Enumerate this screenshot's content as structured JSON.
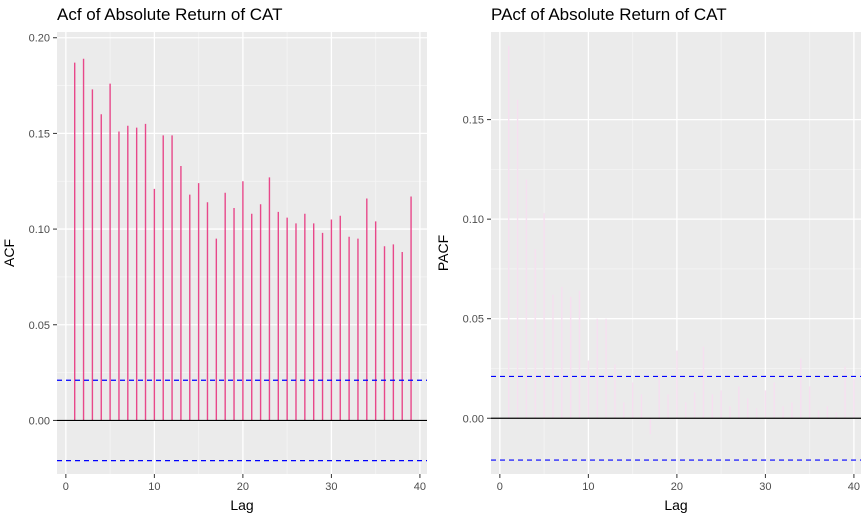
{
  "chart_data": [
    {
      "type": "bar",
      "title": "Acf of Absolute Return of CAT",
      "xlabel": "Lag",
      "ylabel": "ACF",
      "xlim": [
        -1,
        40.8
      ],
      "ylim": [
        -0.028,
        0.203
      ],
      "x_ticks": [
        0,
        10,
        20,
        30,
        40
      ],
      "y_ticks": [
        0.0,
        0.05,
        0.1,
        0.15,
        0.2
      ],
      "x_tick_labels": [
        "0",
        "10",
        "20",
        "30",
        "40"
      ],
      "y_tick_labels": [
        "0.00",
        "0.05",
        "0.10",
        "0.15",
        "0.20"
      ],
      "grid": true,
      "legend": "none",
      "bar_color": "#e8488a",
      "confidence_band": 0.021,
      "confidence_color": "#0000ff",
      "x": [
        1,
        2,
        3,
        4,
        5,
        6,
        7,
        8,
        9,
        10,
        11,
        12,
        13,
        14,
        15,
        16,
        17,
        18,
        19,
        20,
        21,
        22,
        23,
        24,
        25,
        26,
        27,
        28,
        29,
        30,
        31,
        32,
        33,
        34,
        35,
        36,
        37,
        38,
        39
      ],
      "values": [
        0.187,
        0.189,
        0.173,
        0.16,
        0.176,
        0.151,
        0.154,
        0.153,
        0.155,
        0.121,
        0.149,
        0.149,
        0.133,
        0.118,
        0.124,
        0.114,
        0.095,
        0.119,
        0.111,
        0.125,
        0.108,
        0.113,
        0.127,
        0.109,
        0.106,
        0.103,
        0.108,
        0.103,
        0.098,
        0.105,
        0.107,
        0.096,
        0.095,
        0.116,
        0.104,
        0.091,
        0.092,
        0.088,
        0.117
      ]
    },
    {
      "type": "bar",
      "title": "PAcf of Absolute Return of CAT",
      "xlabel": "Lag",
      "ylabel": "PACF",
      "xlim": [
        -1,
        40.8
      ],
      "ylim": [
        -0.028,
        0.194
      ],
      "x_ticks": [
        0,
        10,
        20,
        30,
        40
      ],
      "y_ticks": [
        0.0,
        0.05,
        0.1,
        0.15
      ],
      "x_tick_labels": [
        "0",
        "10",
        "20",
        "30",
        "40"
      ],
      "y_tick_labels": [
        "0.00",
        "0.05",
        "0.10",
        "0.15"
      ],
      "grid": true,
      "legend": "none",
      "bar_color": "#f6dff0",
      "confidence_band": 0.021,
      "confidence_color": "#0000ff",
      "x": [
        1,
        2,
        3,
        4,
        5,
        6,
        7,
        8,
        9,
        10,
        11,
        12,
        13,
        14,
        15,
        16,
        17,
        18,
        19,
        20,
        21,
        22,
        23,
        24,
        25,
        26,
        27,
        28,
        29,
        30,
        31,
        32,
        33,
        34,
        35,
        36,
        37,
        38,
        39,
        40
      ],
      "values": [
        0.187,
        0.16,
        0.12,
        0.085,
        0.103,
        0.062,
        0.066,
        0.061,
        0.064,
        0.029,
        0.05,
        0.05,
        0.027,
        0.008,
        0.018,
        0.012,
        -0.008,
        0.022,
        0.012,
        0.034,
        0.008,
        0.013,
        0.036,
        0.012,
        0.014,
        0.006,
        0.016,
        0.01,
        0.005,
        0.014,
        0.018,
        0.006,
        0.008,
        0.03,
        0.016,
        0.004,
        0.006,
        0.003,
        0.026,
        0.02
      ]
    }
  ]
}
